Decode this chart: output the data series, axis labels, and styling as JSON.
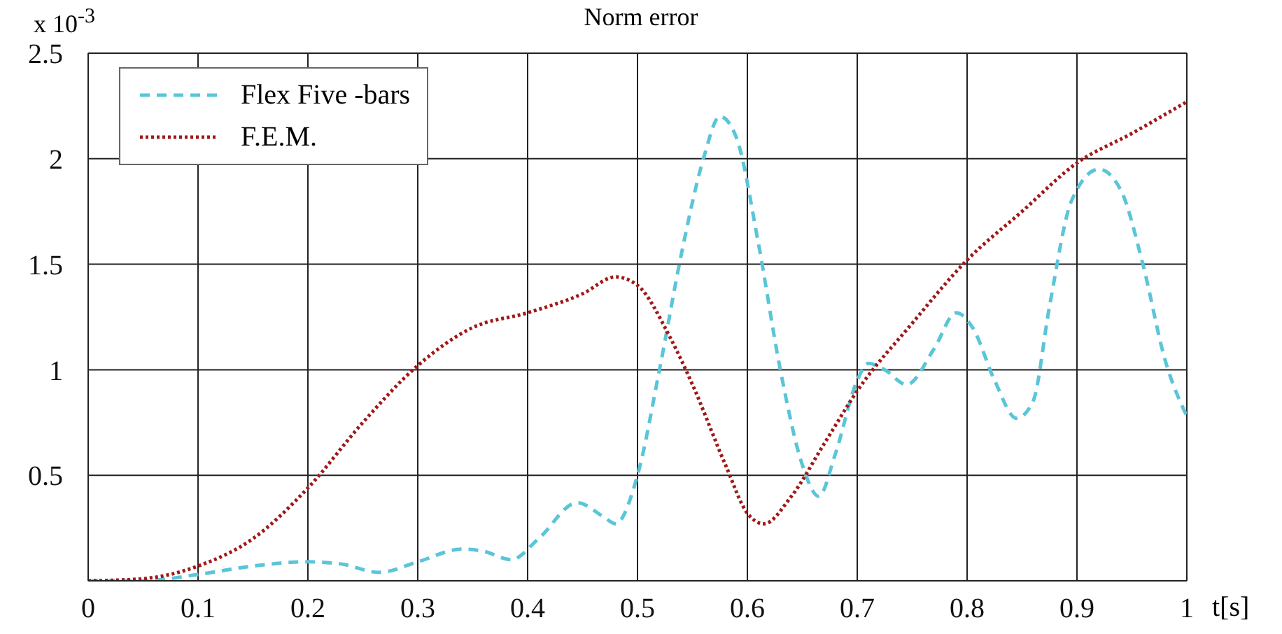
{
  "chart_data": {
    "type": "line",
    "title": "Norm error",
    "xlabel": "t[s]",
    "ylabel": "x 10$^{-3}$",
    "xlim": [
      0,
      1
    ],
    "xticks": [
      0,
      0.1,
      0.2,
      0.3,
      0.4,
      0.5,
      0.6,
      0.7,
      0.8,
      0.9,
      1
    ],
    "ylim": [
      0,
      2.5
    ],
    "yticks": [
      {
        "value": 0,
        "label": null
      },
      0.5,
      1,
      1.5,
      2,
      2.5
    ],
    "grid": true,
    "legend": "top left",
    "marker": "none",
    "series": [
      {
        "name": "Flex Five -bars",
        "color": "#5bc5d8",
        "line_style": "dashed",
        "x": [
          0,
          0.05,
          0.1,
          0.15,
          0.2,
          0.23,
          0.265,
          0.3,
          0.34,
          0.36,
          0.385,
          0.41,
          0.445,
          0.47,
          0.48,
          0.5,
          0.52,
          0.54,
          0.56,
          0.575,
          0.59,
          0.61,
          0.63,
          0.65,
          0.665,
          0.68,
          0.7,
          0.71,
          0.725,
          0.745,
          0.77,
          0.79,
          0.805,
          0.825,
          0.845,
          0.86,
          0.875,
          0.895,
          0.92,
          0.94,
          0.96,
          0.98,
          1
        ],
        "values": [
          0,
          0,
          0.03,
          0.07,
          0.09,
          0.08,
          0.04,
          0.09,
          0.15,
          0.14,
          0.1,
          0.2,
          0.37,
          0.3,
          0.27,
          0.5,
          1.0,
          1.55,
          2.0,
          2.2,
          2.1,
          1.6,
          1.0,
          0.55,
          0.4,
          0.6,
          0.95,
          1.03,
          1.0,
          0.93,
          1.1,
          1.27,
          1.2,
          0.95,
          0.77,
          0.85,
          1.3,
          1.8,
          1.95,
          1.85,
          1.5,
          1.05,
          0.78
        ]
      },
      {
        "name": "F.E.M.",
        "color": "#a01818",
        "line_style": "dotted",
        "x": [
          0,
          0.05,
          0.1,
          0.15,
          0.2,
          0.25,
          0.3,
          0.35,
          0.4,
          0.45,
          0.48,
          0.5,
          0.53,
          0.55,
          0.58,
          0.6,
          0.615,
          0.64,
          0.67,
          0.7,
          0.75,
          0.8,
          0.85,
          0.9,
          0.95,
          1
        ],
        "values": [
          0,
          0.01,
          0.07,
          0.2,
          0.44,
          0.75,
          1.02,
          1.2,
          1.27,
          1.36,
          1.44,
          1.4,
          1.15,
          0.93,
          0.55,
          0.32,
          0.27,
          0.4,
          0.65,
          0.9,
          1.22,
          1.52,
          1.75,
          1.98,
          2.12,
          2.27
        ]
      }
    ]
  }
}
